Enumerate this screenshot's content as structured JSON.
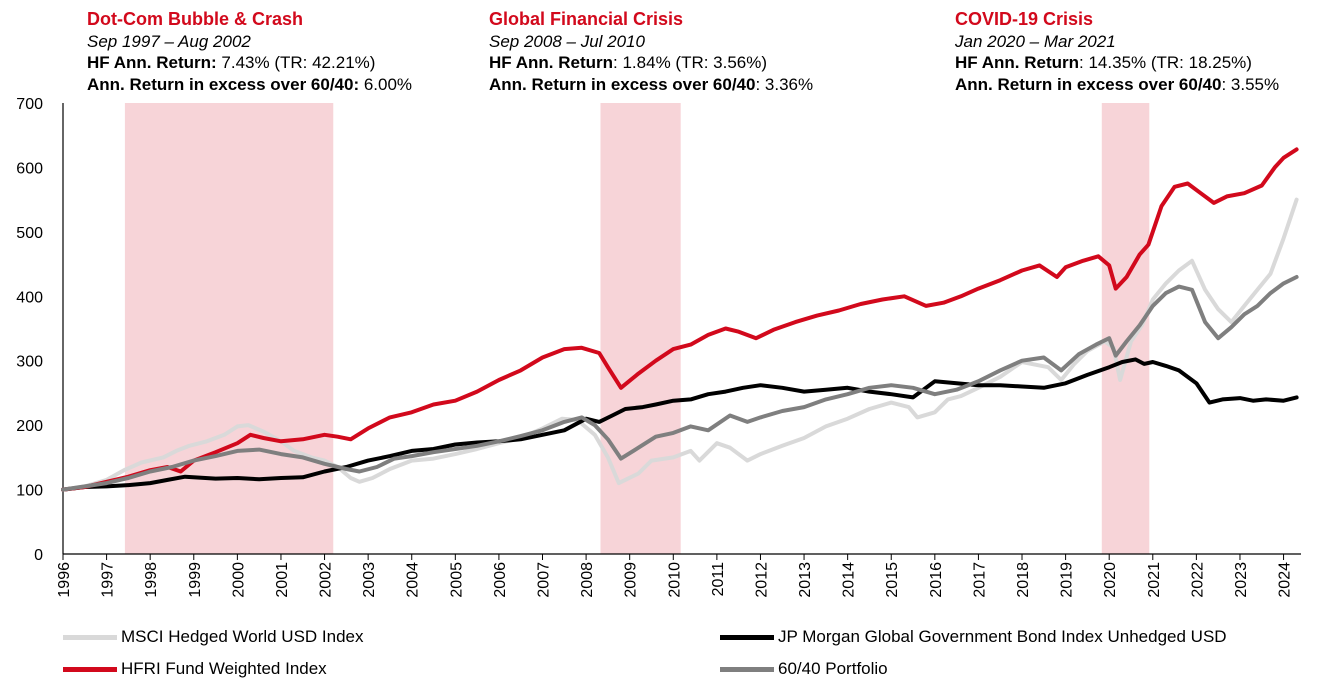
{
  "annotations": [
    {
      "title": "Dot-Com Bubble & Crash",
      "period": "Sep 1997 – Aug 2002",
      "hf_label": "HF Ann. Return:",
      "hf_value": " 7.43% (TR: 42.21%)",
      "excess_label": "Ann. Return in excess over 60/40:",
      "excess_value": " 6.00%"
    },
    {
      "title": "Global Financial Crisis",
      "period": "Sep 2008 – Jul 2010",
      "hf_label": "HF Ann. Return",
      "hf_value": ": 1.84% (TR: 3.56%)",
      "excess_label": "Ann. Return in excess over 60/40",
      "excess_value": ": 3.36%"
    },
    {
      "title": "COVID-19 Crisis",
      "period": "Jan 2020 – Mar 2021",
      "hf_label": "HF Ann. Return",
      "hf_value": ": 14.35% (TR: 18.25%)",
      "excess_label": "Ann. Return in excess over 60/40",
      "excess_value": ": 3.55%"
    }
  ],
  "colors": {
    "hfri": "#d2091c",
    "msci": "#d9d9d9",
    "jpm": "#000000",
    "p6040": "#7f7f7f",
    "shade": "#f7d4d8",
    "axis": "#000000"
  },
  "chart_data": {
    "type": "line",
    "ylim": [
      0,
      700
    ],
    "xlim": [
      1996,
      2024.4
    ],
    "yticks": [
      0,
      100,
      200,
      300,
      400,
      500,
      600,
      700
    ],
    "xticks": [
      1996,
      1997,
      1998,
      1999,
      2000,
      2001,
      2002,
      2003,
      2004,
      2005,
      2006,
      2007,
      2008,
      2009,
      2010,
      2011,
      2012,
      2013,
      2014,
      2015,
      2016,
      2017,
      2018,
      2019,
      2020,
      2021,
      2022,
      2023,
      2024
    ],
    "shaded_periods": [
      {
        "start": 1997.42,
        "end": 2002.2,
        "label": "Dot-Com Bubble & Crash"
      },
      {
        "start": 2008.33,
        "end": 2010.17,
        "label": "Global Financial Crisis"
      },
      {
        "start": 2019.83,
        "end": 2020.92,
        "label": "COVID-19 Crisis"
      }
    ],
    "series": [
      {
        "name": "MSCI Hedged World USD Index",
        "key": "msci",
        "x": [
          1996,
          1996.5,
          1997,
          1997.4,
          1997.8,
          1998.3,
          1998.6,
          1998.9,
          1999.3,
          1999.7,
          2000,
          2000.25,
          2000.6,
          2001,
          2001.3,
          2001.7,
          2002,
          2002.3,
          2002.6,
          2002.8,
          2003.1,
          2003.5,
          2004,
          2004.5,
          2005,
          2005.5,
          2006,
          2006.5,
          2007,
          2007.45,
          2007.8,
          2008.2,
          2008.5,
          2008.75,
          2009.2,
          2009.5,
          2010,
          2010.4,
          2010.6,
          2011,
          2011.3,
          2011.7,
          2012,
          2012.5,
          2013,
          2013.5,
          2014,
          2014.5,
          2015,
          2015.4,
          2015.6,
          2016,
          2016.3,
          2016.6,
          2017,
          2017.5,
          2018,
          2018.6,
          2018.9,
          2019.2,
          2019.5,
          2019.9,
          2020.1,
          2020.25,
          2020.5,
          2020.75,
          2021,
          2021.3,
          2021.6,
          2021.9,
          2022.2,
          2022.5,
          2022.8,
          2023.1,
          2023.4,
          2023.7,
          2024,
          2024.3
        ],
        "y": [
          100,
          105,
          115,
          130,
          142,
          150,
          160,
          168,
          175,
          185,
          198,
          200,
          190,
          175,
          160,
          150,
          145,
          135,
          118,
          112,
          118,
          132,
          145,
          148,
          155,
          163,
          172,
          180,
          195,
          210,
          208,
          185,
          150,
          110,
          125,
          145,
          150,
          160,
          145,
          172,
          165,
          145,
          155,
          168,
          180,
          198,
          210,
          225,
          235,
          228,
          212,
          220,
          240,
          245,
          258,
          275,
          298,
          290,
          270,
          295,
          315,
          330,
          320,
          270,
          330,
          355,
          395,
          420,
          440,
          455,
          410,
          380,
          360,
          385,
          410,
          435,
          490,
          550
        ]
      },
      {
        "name": "JP Morgan Global Government Bond Index Unhedged USD",
        "key": "jpm",
        "x": [
          1996,
          1996.5,
          1997,
          1997.5,
          1998,
          1998.4,
          1998.8,
          1999.5,
          2000,
          2000.5,
          2001,
          2001.5,
          2002,
          2002.5,
          2003,
          2003.5,
          2004,
          2004.5,
          2005,
          2005.5,
          2006,
          2006.5,
          2007,
          2007.5,
          2008,
          2008.3,
          2008.6,
          2008.9,
          2009.3,
          2009.6,
          2010,
          2010.4,
          2010.8,
          2011.2,
          2011.6,
          2012,
          2012.5,
          2013,
          2013.5,
          2014,
          2014.5,
          2015,
          2015.5,
          2016,
          2016.5,
          2017,
          2017.5,
          2018,
          2018.5,
          2019,
          2019.5,
          2020,
          2020.3,
          2020.6,
          2020.8,
          2021,
          2021.3,
          2021.6,
          2022,
          2022.3,
          2022.6,
          2023,
          2023.3,
          2023.6,
          2024,
          2024.3
        ],
        "y": [
          100,
          104,
          105,
          107,
          110,
          115,
          120,
          117,
          118,
          116,
          118,
          119,
          128,
          135,
          145,
          152,
          160,
          163,
          170,
          173,
          175,
          178,
          185,
          192,
          210,
          205,
          215,
          225,
          228,
          232,
          238,
          240,
          248,
          252,
          258,
          262,
          258,
          252,
          255,
          258,
          252,
          248,
          243,
          268,
          265,
          262,
          262,
          260,
          258,
          265,
          278,
          290,
          298,
          302,
          295,
          298,
          292,
          285,
          265,
          235,
          240,
          242,
          238,
          240,
          238,
          243
        ]
      },
      {
        "name": "HFRI Fund Weighted Index",
        "key": "hfri",
        "x": [
          1996,
          1996.5,
          1997,
          1997.5,
          1998,
          1998.4,
          1998.7,
          1999,
          1999.5,
          2000,
          2000.3,
          2000.6,
          2001,
          2001.5,
          2002,
          2002.3,
          2002.6,
          2003,
          2003.5,
          2004,
          2004.5,
          2005,
          2005.5,
          2006,
          2006.5,
          2007,
          2007.5,
          2007.9,
          2008.3,
          2008.5,
          2008.8,
          2009.2,
          2009.6,
          2010,
          2010.4,
          2010.8,
          2011.2,
          2011.5,
          2011.9,
          2012.3,
          2012.8,
          2013.3,
          2013.8,
          2014.3,
          2014.8,
          2015.3,
          2015.8,
          2016.2,
          2016.6,
          2017,
          2017.5,
          2018,
          2018.4,
          2018.8,
          2019,
          2019.4,
          2019.75,
          2020,
          2020.15,
          2020.4,
          2020.7,
          2020.9,
          2021.2,
          2021.5,
          2021.8,
          2022.1,
          2022.4,
          2022.7,
          2023.1,
          2023.5,
          2023.8,
          2024,
          2024.3
        ],
        "y": [
          100,
          104,
          112,
          120,
          130,
          135,
          128,
          145,
          158,
          172,
          185,
          180,
          175,
          178,
          185,
          182,
          178,
          195,
          212,
          220,
          232,
          238,
          252,
          270,
          285,
          305,
          318,
          320,
          312,
          290,
          258,
          280,
          300,
          318,
          325,
          340,
          350,
          345,
          335,
          348,
          360,
          370,
          378,
          388,
          395,
          400,
          385,
          390,
          400,
          412,
          425,
          440,
          448,
          430,
          445,
          455,
          462,
          448,
          412,
          430,
          465,
          480,
          540,
          570,
          575,
          560,
          545,
          555,
          560,
          572,
          600,
          615,
          628
        ]
      },
      {
        "name": "60/40 Portfolio",
        "key": "p6040",
        "x": [
          1996,
          1996.5,
          1997,
          1997.5,
          1998,
          1998.5,
          1999,
          1999.5,
          2000,
          2000.5,
          2001,
          2001.5,
          2002,
          2002.5,
          2002.8,
          2003.2,
          2003.6,
          2004,
          2004.5,
          2005,
          2005.5,
          2006,
          2006.5,
          2007,
          2007.5,
          2007.9,
          2008.2,
          2008.5,
          2008.8,
          2009.2,
          2009.6,
          2010,
          2010.4,
          2010.8,
          2011.3,
          2011.7,
          2012,
          2012.5,
          2013,
          2013.5,
          2014,
          2014.5,
          2015,
          2015.5,
          2016,
          2016.5,
          2017,
          2017.5,
          2018,
          2018.5,
          2018.9,
          2019.3,
          2019.7,
          2020,
          2020.15,
          2020.4,
          2020.7,
          2021,
          2021.3,
          2021.6,
          2021.9,
          2022.2,
          2022.5,
          2022.8,
          2023.1,
          2023.4,
          2023.7,
          2024,
          2024.3
        ],
        "y": [
          100,
          105,
          110,
          118,
          128,
          135,
          145,
          152,
          160,
          162,
          155,
          150,
          140,
          132,
          128,
          135,
          148,
          152,
          158,
          163,
          168,
          175,
          183,
          192,
          205,
          212,
          200,
          178,
          148,
          165,
          182,
          188,
          198,
          192,
          215,
          205,
          212,
          222,
          228,
          240,
          248,
          258,
          262,
          258,
          248,
          255,
          268,
          285,
          300,
          305,
          285,
          310,
          325,
          335,
          308,
          330,
          355,
          385,
          405,
          415,
          410,
          360,
          335,
          352,
          372,
          385,
          405,
          420,
          430
        ]
      }
    ]
  },
  "legend": [
    {
      "key": "msci",
      "label": "MSCI Hedged World USD Index"
    },
    {
      "key": "jpm",
      "label": "JP Morgan Global Government Bond Index Unhedged USD"
    },
    {
      "key": "hfri",
      "label": "HFRI Fund Weighted Index"
    },
    {
      "key": "p6040",
      "label": "60/40 Portfolio"
    }
  ]
}
